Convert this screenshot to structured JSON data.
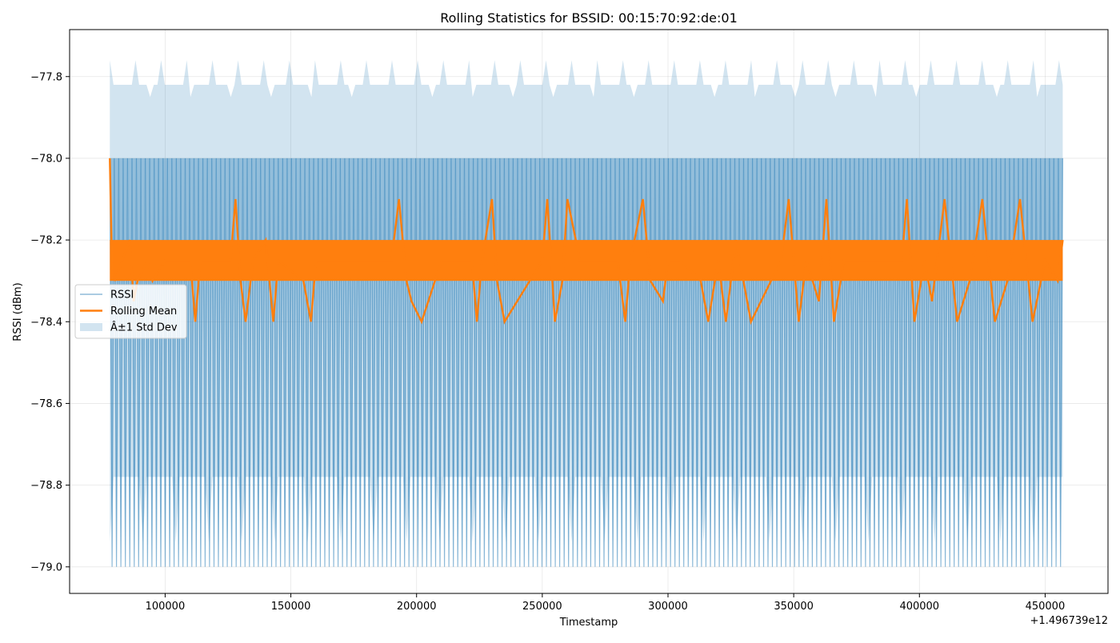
{
  "chart_data": {
    "type": "line",
    "title": "Rolling Statistics for BSSID: 00:15:70:92:de:01",
    "xlabel": "Timestamp",
    "ylabel": "RSSI (dBm)",
    "x_offset_text": "+1.496739e12",
    "xlim": [
      62000,
      475000
    ],
    "ylim": [
      -79.065,
      -77.685
    ],
    "x_ticks": [
      100000,
      150000,
      200000,
      250000,
      300000,
      350000,
      400000,
      450000
    ],
    "x_tick_labels": [
      "100000",
      "150000",
      "200000",
      "250000",
      "300000",
      "350000",
      "400000",
      "450000"
    ],
    "y_ticks": [
      -79.0,
      -78.8,
      -78.6,
      -78.4,
      -78.2,
      -78.0,
      -77.8
    ],
    "y_tick_labels": [
      "−79.0",
      "−78.8",
      "−78.6",
      "−78.4",
      "−78.2",
      "−78.0",
      "−77.8"
    ],
    "grid": true,
    "legend_position": "center-left",
    "series": [
      {
        "name": "RSSI",
        "color": "#1f77b4",
        "style": "thin-line",
        "x_range": [
          78000,
          457000
        ],
        "values_alternate": [
          -78.0,
          -79.0
        ],
        "mean_value": -78.3
      },
      {
        "name": "Rolling Mean",
        "color": "#ff7f0e",
        "style": "thick-line",
        "x": [
          78000,
          78800,
          80000,
          86000,
          87500,
          89000,
          93000,
          95000,
          100000,
          110000,
          112000,
          114000,
          126000,
          128000,
          130000,
          132000,
          135000,
          140000,
          143000,
          145000,
          155000,
          158000,
          160000,
          190000,
          193000,
          196000,
          198000,
          202000,
          210000,
          222000,
          224000,
          226000,
          230000,
          232000,
          235000,
          250000,
          252000,
          255000,
          258000,
          260000,
          265000,
          280000,
          283000,
          285000,
          290000,
          293000,
          298000,
          300000,
          305000,
          313000,
          316000,
          320000,
          323000,
          327000,
          330000,
          333000,
          345000,
          348000,
          352000,
          355000,
          360000,
          363000,
          366000,
          370000,
          393000,
          395000,
          398000,
          402000,
          405000,
          410000,
          415000,
          420000,
          425000,
          430000,
          435000,
          440000,
          445000,
          450000,
          455000,
          457000
        ],
        "y": [
          -78.0,
          -78.25,
          -78.3,
          -78.2,
          -78.35,
          -78.3,
          -78.25,
          -78.3,
          -78.25,
          -78.25,
          -78.4,
          -78.25,
          -78.25,
          -78.1,
          -78.3,
          -78.4,
          -78.25,
          -78.2,
          -78.4,
          -78.25,
          -78.3,
          -78.4,
          -78.25,
          -78.25,
          -78.1,
          -78.3,
          -78.35,
          -78.4,
          -78.25,
          -78.25,
          -78.4,
          -78.25,
          -78.1,
          -78.3,
          -78.4,
          -78.25,
          -78.1,
          -78.4,
          -78.3,
          -78.1,
          -78.25,
          -78.25,
          -78.4,
          -78.25,
          -78.1,
          -78.3,
          -78.35,
          -78.25,
          -78.25,
          -78.3,
          -78.4,
          -78.25,
          -78.4,
          -78.2,
          -78.3,
          -78.4,
          -78.25,
          -78.1,
          -78.4,
          -78.25,
          -78.35,
          -78.1,
          -78.4,
          -78.25,
          -78.25,
          -78.1,
          -78.4,
          -78.25,
          -78.35,
          -78.1,
          -78.4,
          -78.3,
          -78.1,
          -78.4,
          -78.3,
          -78.1,
          -78.4,
          -78.25,
          -78.3,
          -78.2
        ],
        "band_min": -78.2,
        "band_max": -78.3
      },
      {
        "name": "Â±1 Std Dev",
        "color": "#1f77b4",
        "style": "fill-band",
        "upper_approx": -77.82,
        "lower_approx": -78.78
      }
    ]
  }
}
